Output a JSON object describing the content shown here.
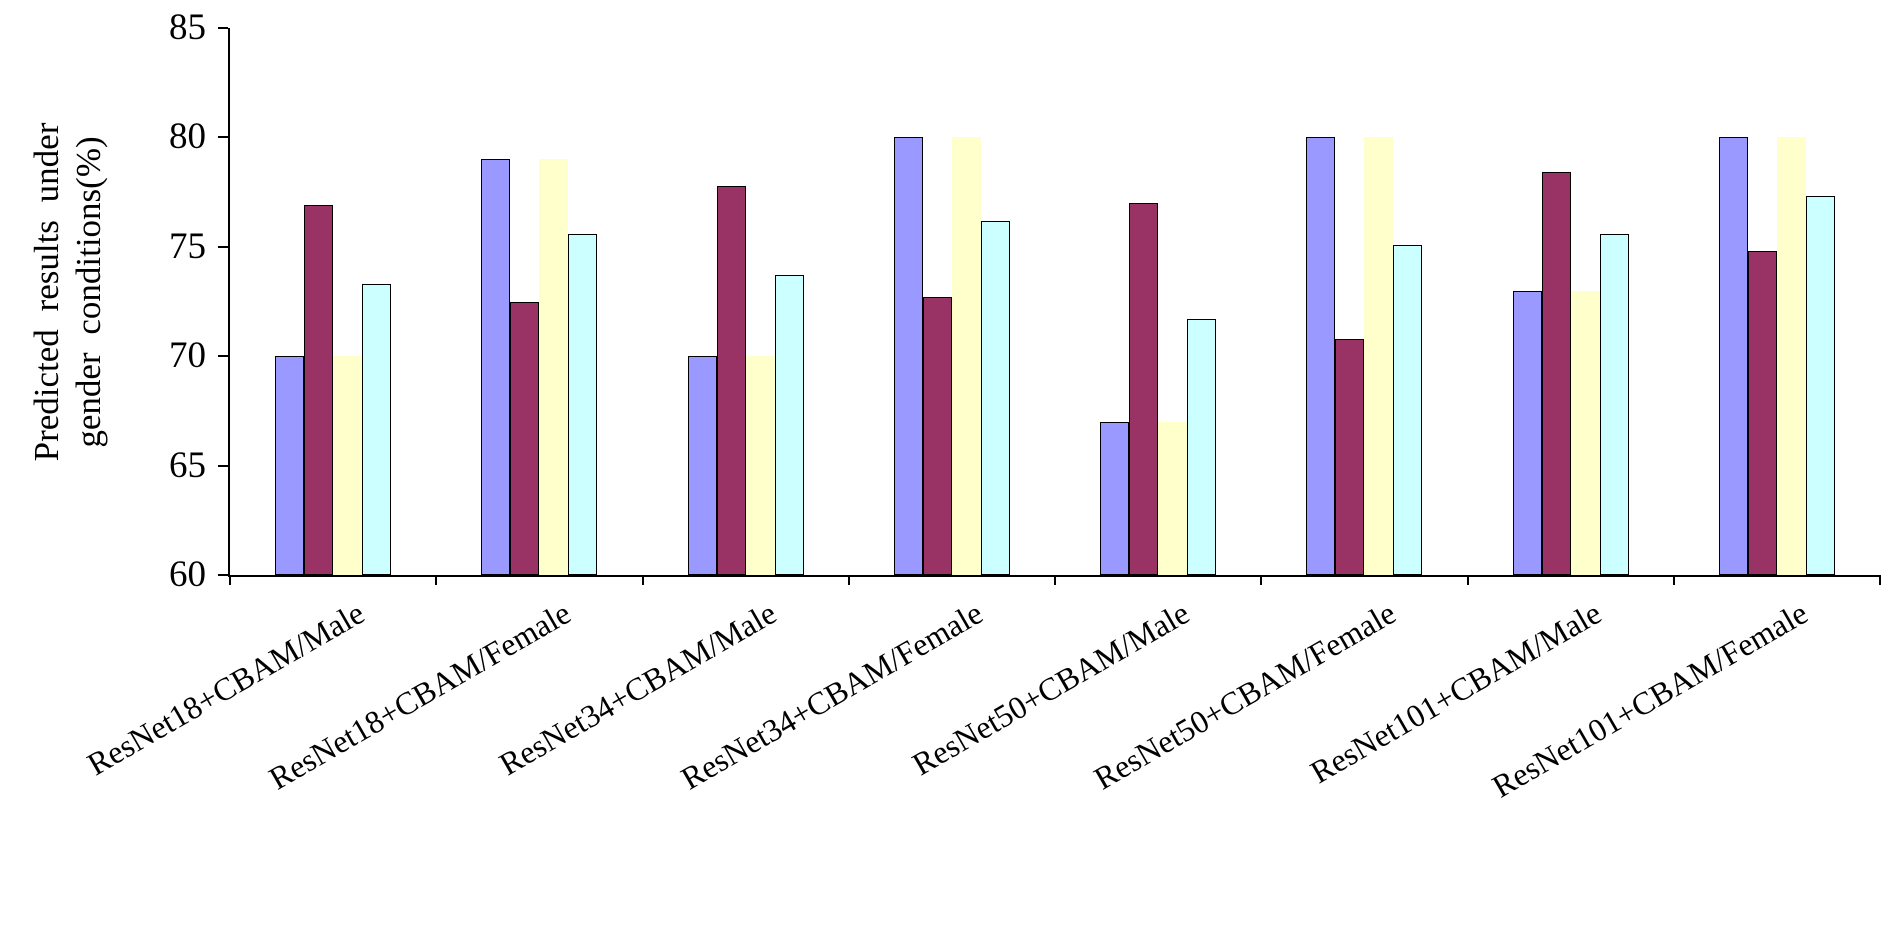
{
  "chart_data": {
    "type": "bar",
    "title": "",
    "ylabel": "Predicted results under gender conditions(%)",
    "ylabel_lines": [
      "Predicted  results  under",
      "gender conditions(%)"
    ],
    "xlabel": "",
    "ylim": [
      60,
      85
    ],
    "yticks": [
      60,
      65,
      70,
      75,
      80,
      85
    ],
    "grid": false,
    "legend_position": "none",
    "axis_color": "#000000",
    "background_color": "#ffffff",
    "categories": [
      "ResNet18+CBAM/Male",
      "ResNet18+CBAM/Female",
      "ResNet34+CBAM/Male",
      "ResNet34+CBAM/Female",
      "ResNet50+CBAM/Male",
      "ResNet50+CBAM/Female",
      "ResNet101+CBAM/Male",
      "ResNet101+CBAM/Female"
    ],
    "series": [
      {
        "name": "series-1-periwinkle",
        "color": "#9999FF",
        "border": "#000000",
        "values": [
          70,
          79,
          70,
          80,
          67,
          80,
          73,
          80
        ]
      },
      {
        "name": "series-2-maroon",
        "color": "#993366",
        "border": "#000000",
        "values": [
          76.9,
          72.5,
          77.8,
          72.7,
          77.0,
          70.8,
          78.4,
          74.8
        ]
      },
      {
        "name": "series-3-pale-yellow",
        "color": "#FFFFCC",
        "border": "none",
        "values": [
          70,
          79,
          70,
          80,
          67,
          80,
          73,
          80
        ]
      },
      {
        "name": "series-4-pale-cyan",
        "color": "#CCFFFF",
        "border": "#000000",
        "values": [
          73.3,
          75.6,
          73.7,
          76.2,
          71.7,
          75.1,
          75.6,
          77.3
        ]
      }
    ]
  }
}
